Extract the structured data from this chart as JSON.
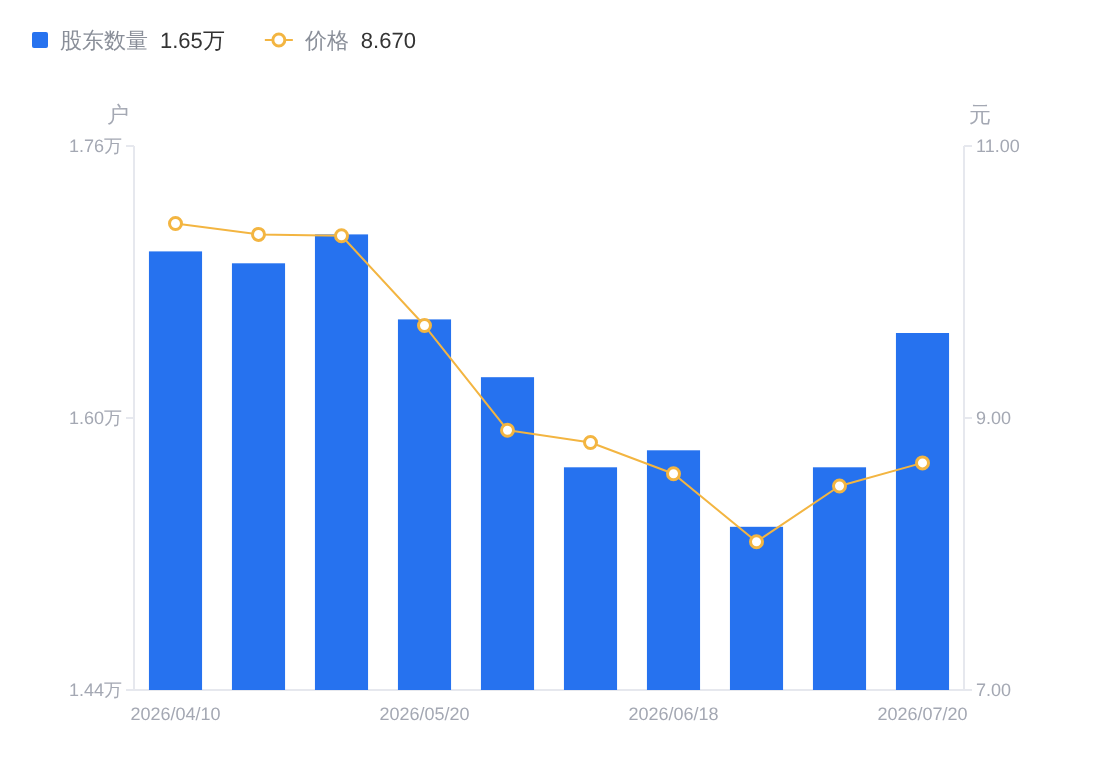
{
  "chart_data": {
    "type": "bar",
    "ylabel": "户",
    "y2label": "元",
    "categories": [
      "2026/04/10",
      null,
      null,
      "2026/05/20",
      null,
      null,
      "2026/06/18",
      null,
      null,
      "2026/07/20"
    ],
    "series": [
      {
        "name": "股东数量",
        "color": "#2672ef",
        "values": [
          1.698,
          1.691,
          1.708,
          1.658,
          1.624,
          1.571,
          1.581,
          1.536,
          1.571,
          1.65
        ]
      },
      {
        "name": "价格",
        "type": "line",
        "axis": "y2",
        "color": "#f3b541",
        "values": [
          10.43,
          10.35,
          10.34,
          9.68,
          8.91,
          8.82,
          8.59,
          8.09,
          8.5,
          8.67
        ]
      }
    ],
    "ylim": [
      1.44,
      1.76
    ],
    "yticks": [
      {
        "value": 1.44,
        "label": "1.44万"
      },
      {
        "value": 1.6,
        "label": "1.60万"
      },
      {
        "value": 1.76,
        "label": "1.76万"
      }
    ],
    "y2lim": [
      7,
      11
    ],
    "y2ticks": [
      {
        "value": 7,
        "label": "7.00"
      },
      {
        "value": 9,
        "label": "9.00"
      },
      {
        "value": 11,
        "label": "11.00"
      }
    ],
    "annotations": [
      "1.65万",
      "8.670"
    ],
    "legend": "top left",
    "marker": "circle",
    "grid": false
  }
}
